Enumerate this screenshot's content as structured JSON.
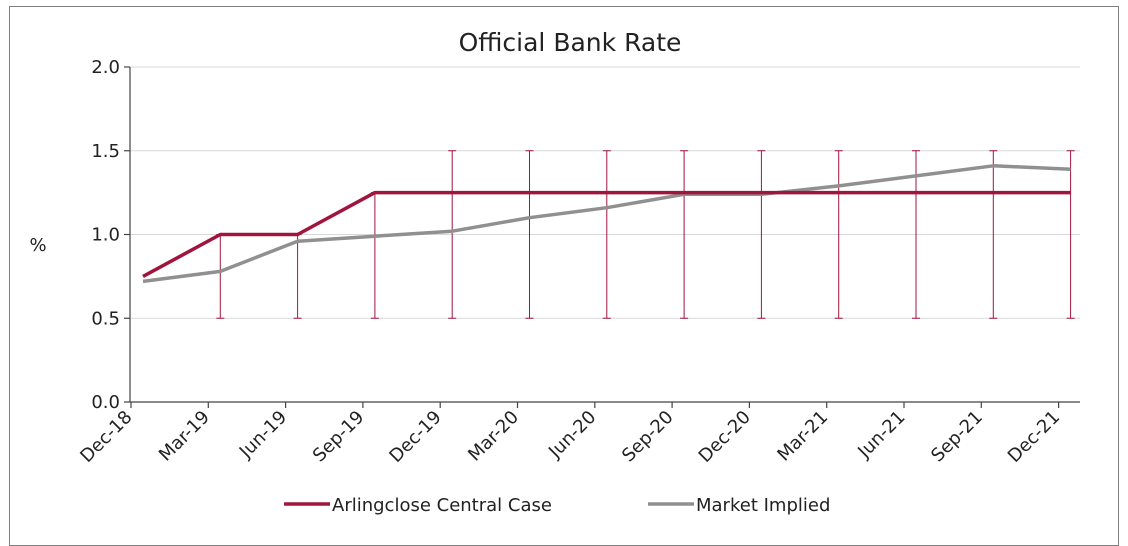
{
  "chart_data": {
    "type": "line",
    "title": "Official Bank Rate",
    "ylabel": "%",
    "xlabel": "",
    "ylim": [
      0,
      2.0
    ],
    "yticks": [
      "0.0",
      "0.5",
      "1.0",
      "1.5",
      "2.0"
    ],
    "categories": [
      "Dec-18",
      "Mar-19",
      "Jun-19",
      "Sep-19",
      "Dec-19",
      "Mar-20",
      "Jun-20",
      "Sep-20",
      "Dec-20",
      "Mar-21",
      "Jun-21",
      "Sep-21",
      "Dec-21"
    ],
    "series": [
      {
        "name": "Arlingclose Central Case",
        "color": "#a0153e",
        "values": [
          0.75,
          1.0,
          1.0,
          1.25,
          1.25,
          1.25,
          1.25,
          1.25,
          1.25,
          1.25,
          1.25,
          1.25,
          1.25
        ]
      },
      {
        "name": "Market Implied",
        "color": "#909090",
        "values": [
          0.72,
          0.78,
          0.96,
          0.99,
          1.02,
          1.1,
          1.16,
          1.24,
          1.24,
          1.29,
          1.35,
          1.41,
          1.39
        ]
      }
    ],
    "error_bars": {
      "color": "#a0153e",
      "low": [
        null,
        0.5,
        0.5,
        0.5,
        0.5,
        0.5,
        0.5,
        0.5,
        0.5,
        0.5,
        0.5,
        0.5,
        0.5
      ],
      "high": [
        null,
        1.0,
        1.0,
        1.25,
        1.5,
        1.5,
        1.5,
        1.5,
        1.5,
        1.5,
        1.5,
        1.5,
        1.5
      ]
    },
    "grid": true,
    "legend_position": "bottom"
  }
}
